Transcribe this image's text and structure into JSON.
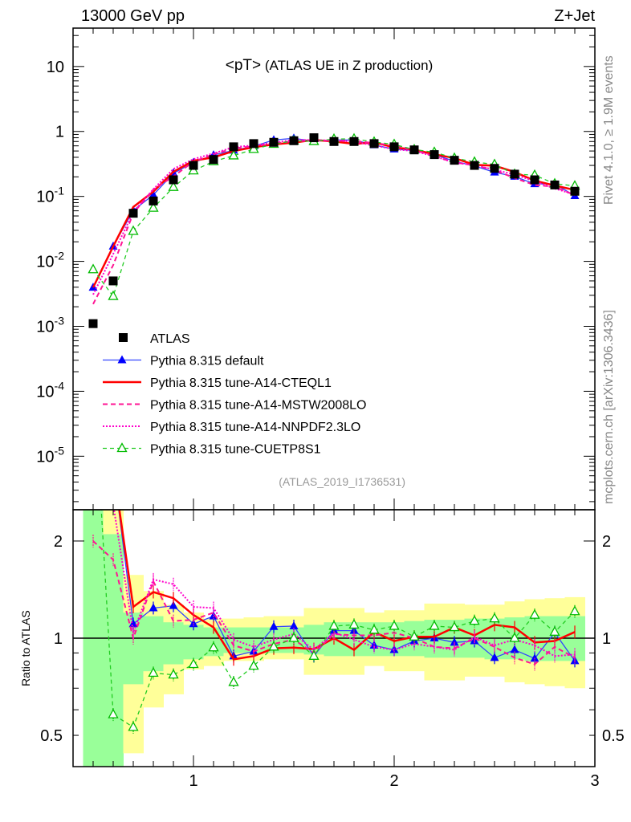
{
  "header": {
    "left": "13000 GeV pp",
    "right": "Z+Jet",
    "plot_title_main": "<pT>",
    "plot_title_sub": "(ATLAS UE in Z production)",
    "side_top": "Rivet 4.1.0, ≥ 1.9M events",
    "side_bottom": "mcplots.cern.ch [arXiv:1306.3436]",
    "analysis_id": "(ATLAS_2019_I1736531)"
  },
  "chart_data": {
    "type": "line",
    "title": "<pT> (ATLAS UE in Z production)",
    "xlabel": "",
    "ylabel": "",
    "ratio_ylabel": "Ratio to ATLAS",
    "xlim": [
      0.4,
      3.0
    ],
    "ylim": [
      1.5e-06,
      39
    ],
    "ratio_ylim": [
      0.4,
      2.5
    ],
    "yscale": "log",
    "ratio_yscale": "log",
    "legend_position": "lower-left",
    "xticks": [
      {
        "v": 1,
        "label": "1"
      },
      {
        "v": 2,
        "label": "2"
      },
      {
        "v": 3,
        "label": "3"
      }
    ],
    "yticks": [
      {
        "v": 10,
        "base": "10",
        "exp": ""
      },
      {
        "v": 1,
        "base": "1",
        "exp": ""
      },
      {
        "v": 0.1,
        "base": "10",
        "exp": "-1"
      },
      {
        "v": 0.01,
        "base": "10",
        "exp": "-2"
      },
      {
        "v": 0.001,
        "base": "10",
        "exp": "-3"
      },
      {
        "v": 0.0001,
        "base": "10",
        "exp": "-4"
      },
      {
        "v": 1e-05,
        "base": "10",
        "exp": "-5"
      }
    ],
    "ratio_yticks": [
      {
        "v": 2,
        "label": "2"
      },
      {
        "v": 1,
        "label": "1"
      },
      {
        "v": 0.5,
        "label": "0.5"
      }
    ],
    "x": [
      0.5,
      0.6,
      0.7,
      0.8,
      0.9,
      1.0,
      1.1,
      1.2,
      1.3,
      1.4,
      1.5,
      1.6,
      1.7,
      1.8,
      1.9,
      2.0,
      2.1,
      2.2,
      2.3,
      2.4,
      2.5,
      2.6,
      2.7,
      2.8,
      2.9
    ],
    "data": {
      "name": "ATLAS",
      "color": "#000000",
      "values": [
        0.0011,
        0.005,
        0.055,
        0.085,
        0.18,
        0.3,
        0.37,
        0.58,
        0.65,
        0.68,
        0.72,
        0.8,
        0.7,
        0.7,
        0.65,
        0.58,
        0.52,
        0.44,
        0.36,
        0.3,
        0.27,
        0.22,
        0.18,
        0.15,
        0.12
      ],
      "band_inner": {
        "color": "#99ff99",
        "lo": [
          0.4,
          0.4,
          0.72,
          0.79,
          0.83,
          0.86,
          0.88,
          0.9,
          0.9,
          0.9,
          0.9,
          0.89,
          0.88,
          0.88,
          0.88,
          0.88,
          0.88,
          0.87,
          0.87,
          0.87,
          0.86,
          0.86,
          0.85,
          0.85,
          0.85
        ],
        "hi": [
          2.5,
          2.1,
          1.2,
          1.17,
          1.12,
          1.1,
          1.08,
          1.08,
          1.08,
          1.08,
          1.08,
          1.1,
          1.12,
          1.12,
          1.12,
          1.12,
          1.13,
          1.14,
          1.14,
          1.15,
          1.15,
          1.16,
          1.17,
          1.17,
          1.17
        ]
      },
      "band_outer": {
        "color": "#ffff99",
        "lo": [
          0.4,
          0.4,
          0.44,
          0.61,
          0.67,
          0.8,
          0.82,
          0.85,
          0.85,
          0.86,
          0.86,
          0.77,
          0.77,
          0.77,
          0.82,
          0.79,
          0.79,
          0.74,
          0.74,
          0.76,
          0.76,
          0.73,
          0.72,
          0.71,
          0.7
        ],
        "hi": [
          2.5,
          2.5,
          1.57,
          1.4,
          1.27,
          1.2,
          1.15,
          1.15,
          1.16,
          1.17,
          1.17,
          1.24,
          1.24,
          1.24,
          1.2,
          1.22,
          1.22,
          1.28,
          1.28,
          1.27,
          1.27,
          1.3,
          1.32,
          1.33,
          1.34
        ]
      }
    },
    "series": [
      {
        "name": "Pythia 8.315 default",
        "color": "#0000ff",
        "line": "#3344ff",
        "style": "solid",
        "marker": "triangle-filled",
        "ratio": [
          3.6,
          3.4,
          1.107,
          1.24,
          1.26,
          1.107,
          1.17,
          0.88,
          0.91,
          1.085,
          1.09,
          0.88,
          1.055,
          1.055,
          0.95,
          0.92,
          0.98,
          1.0,
          0.97,
          0.98,
          0.87,
          0.92,
          0.865,
          1.04,
          0.85
        ]
      },
      {
        "name": "Pythia 8.315 tune-A14-CTEQL1",
        "color": "#ff0000",
        "line": "#ff0000",
        "style": "thick",
        "marker": "none",
        "ratio": [
          3.6,
          3.4,
          1.25,
          1.39,
          1.33,
          1.18,
          1.08,
          0.86,
          0.88,
          0.93,
          0.935,
          0.925,
          1.0,
          0.92,
          1.045,
          0.98,
          1.01,
          1.01,
          1.08,
          1.02,
          1.1,
          1.08,
          0.97,
          0.98,
          1.045
        ]
      },
      {
        "name": "Pythia 8.315 tune-A14-MSTW2008LO",
        "color": "#ff1493",
        "line": "#ff1493",
        "style": "dashed",
        "marker": "none",
        "ratio": [
          2.0,
          1.75,
          1.0,
          1.5,
          1.13,
          1.14,
          1.2,
          0.95,
          0.91,
          0.96,
          0.99,
          0.9,
          1.03,
          1.02,
          1.02,
          1.04,
          1.0,
          0.94,
          0.93,
          1.0,
          0.94,
          0.87,
          0.83,
          0.94,
          0.87
        ]
      },
      {
        "name": "Pythia 8.315 tune-A14-NNPDF2.3LO",
        "color": "#ff00cc",
        "line": "#ff00cc",
        "style": "dotted",
        "marker": "none",
        "ratio": [
          2.8,
          2.6,
          1.04,
          1.52,
          1.47,
          1.25,
          1.24,
          0.99,
          0.94,
          0.99,
          1.03,
          0.92,
          1.04,
          0.99,
          0.94,
          0.92,
          0.96,
          0.94,
          0.92,
          1.01,
          0.95,
          0.99,
          0.95,
          0.88,
          0.89
        ]
      },
      {
        "name": "Pythia 8.315 tune-CUETP8S1",
        "color": "#00bb00",
        "line": "#22cc22",
        "style": "dashed-green",
        "marker": "triangle-open",
        "ratio": [
          6.8,
          0.58,
          0.53,
          0.78,
          0.77,
          0.83,
          0.935,
          0.73,
          0.82,
          0.94,
          1.0,
          0.88,
          1.09,
          1.1,
          1.06,
          1.09,
          1.01,
          1.09,
          1.08,
          1.13,
          1.15,
          1.0,
          1.18,
          1.045,
          1.21
        ]
      }
    ]
  }
}
